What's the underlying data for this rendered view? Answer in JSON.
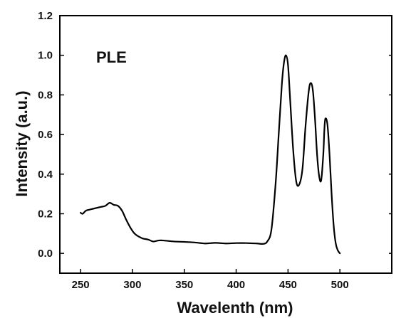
{
  "chart_data": {
    "type": "line",
    "title": "",
    "xlabel": "Wavelenth (nm)",
    "ylabel": "Intensity (a.u.)",
    "xlim": [
      230,
      550
    ],
    "ylim": [
      -0.1,
      1.2
    ],
    "xticks": [
      250,
      300,
      350,
      400,
      450,
      500
    ],
    "yticks": [
      0.0,
      0.2,
      0.4,
      0.6,
      0.8,
      1.0,
      1.2
    ],
    "xtick_labels": [
      "250",
      "300",
      "350",
      "400",
      "450",
      "500"
    ],
    "ytick_labels": [
      "0.0",
      "0.2",
      "0.4",
      "0.6",
      "0.8",
      "1.0",
      "1.2"
    ],
    "annotation": "PLE",
    "grid": false,
    "legend": "none",
    "line_color": "#000000",
    "series": [
      {
        "x": [
          250,
          252,
          255,
          258,
          262,
          266,
          270,
          274,
          278,
          282,
          286,
          290,
          294,
          298,
          302,
          306,
          310,
          315,
          320,
          325,
          330,
          340,
          350,
          360,
          370,
          380,
          390,
          400,
          410,
          420,
          426,
          430,
          434,
          438,
          441,
          444,
          446,
          448,
          450,
          452,
          455,
          458,
          461,
          464,
          467,
          470,
          472,
          474,
          476,
          478,
          480,
          482,
          484,
          485,
          486,
          488,
          490,
          492,
          494,
          496,
          498,
          500
        ],
        "y": [
          0.205,
          0.2,
          0.215,
          0.22,
          0.225,
          0.23,
          0.235,
          0.24,
          0.255,
          0.245,
          0.24,
          0.215,
          0.17,
          0.13,
          0.1,
          0.085,
          0.075,
          0.07,
          0.06,
          0.065,
          0.065,
          0.06,
          0.058,
          0.055,
          0.05,
          0.053,
          0.05,
          0.052,
          0.052,
          0.05,
          0.048,
          0.06,
          0.12,
          0.35,
          0.6,
          0.85,
          0.96,
          1.0,
          0.95,
          0.78,
          0.52,
          0.36,
          0.35,
          0.43,
          0.65,
          0.82,
          0.86,
          0.82,
          0.68,
          0.5,
          0.39,
          0.37,
          0.5,
          0.62,
          0.68,
          0.65,
          0.5,
          0.3,
          0.14,
          0.05,
          0.015,
          0.0
        ]
      }
    ]
  }
}
